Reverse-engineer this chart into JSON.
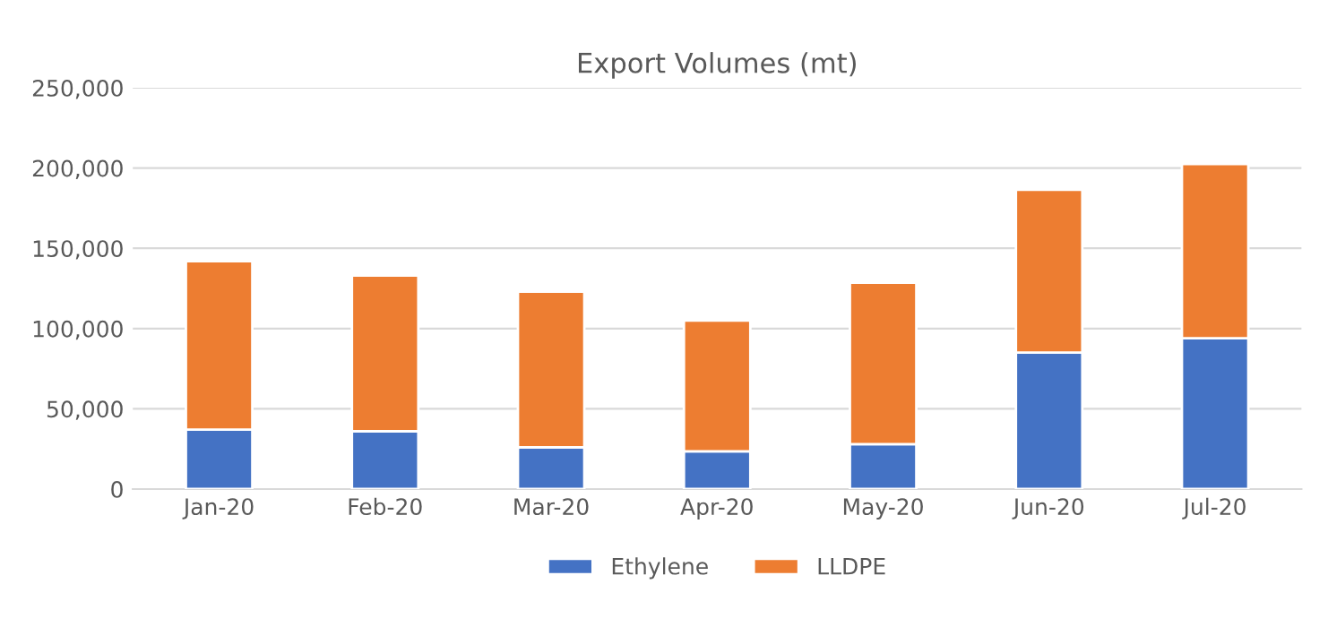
{
  "chart_data": {
    "type": "bar",
    "title": "Export Volumes (mt)",
    "stacked": true,
    "categories": [
      "Jan-20",
      "Feb-20",
      "Mar-20",
      "Apr-20",
      "May-20",
      "Jun-20",
      "Jul-20"
    ],
    "series": [
      {
        "name": "Ethylene",
        "color": "#4472c4",
        "values": [
          37000,
          36000,
          26000,
          23500,
          28000,
          85000,
          94000
        ]
      },
      {
        "name": "LLDPE",
        "color": "#ed7d31",
        "values": [
          105000,
          97000,
          97000,
          81500,
          100500,
          101500,
          108500
        ]
      }
    ],
    "ylim": [
      0,
      250000
    ],
    "yticks": [
      {
        "value": 0,
        "label": "0"
      },
      {
        "value": 50000,
        "label": "50,000"
      },
      {
        "value": 100000,
        "label": "100,000"
      },
      {
        "value": 150000,
        "label": "150,000"
      },
      {
        "value": 200000,
        "label": "200,000"
      },
      {
        "value": 250000,
        "label": "250,000"
      }
    ],
    "grid": "y",
    "legend": "bottom"
  }
}
